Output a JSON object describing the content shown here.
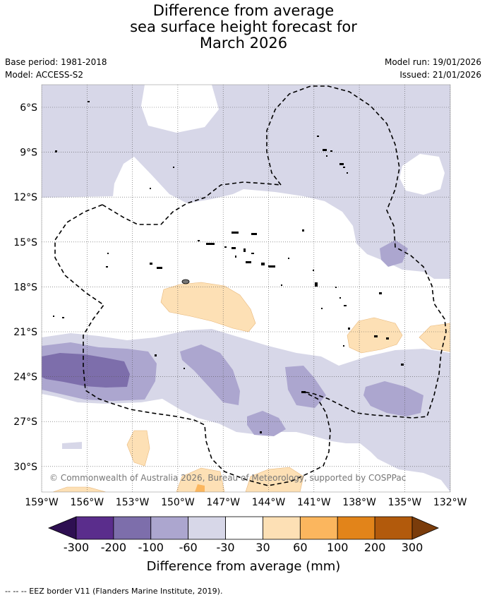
{
  "title_lines": [
    "Difference from average",
    "sea surface height forecast for",
    "March 2026"
  ],
  "base_period": "Base period: 1981-2018",
  "model": "Model: ACCESS-S2",
  "model_run": "Model run: 19/01/2026",
  "issued": "Issued: 21/01/2026",
  "lat_ticks": [
    "6°S",
    "9°S",
    "12°S",
    "15°S",
    "18°S",
    "21°S",
    "24°S",
    "27°S",
    "30°S"
  ],
  "lon_ticks": [
    "159°W",
    "156°W",
    "153°W",
    "150°W",
    "147°W",
    "144°W",
    "141°W",
    "138°W",
    "135°W",
    "132°W"
  ],
  "copyright": "© Commonwealth of Australia 2026, Bureau of Meteorology, supported by COSPPac",
  "colorbar": {
    "labels": [
      "-300",
      "-200",
      "-100",
      "-60",
      "-30",
      "30",
      "60",
      "100",
      "200",
      "300"
    ],
    "colors": [
      "#5a2d8c",
      "#7d6eab",
      "#aca6cf",
      "#d7d7e8",
      "#ffffff",
      "#fde0b5",
      "#fbb65e",
      "#e2841a",
      "#b25a0c"
    ],
    "under_color": "#2e0f52",
    "over_color": "#7a3c0b",
    "title": "Difference from average (mm)"
  },
  "legend_line": "--  --  -- EEZ border V11 (Flanders Marine Institute, 2019)."
}
